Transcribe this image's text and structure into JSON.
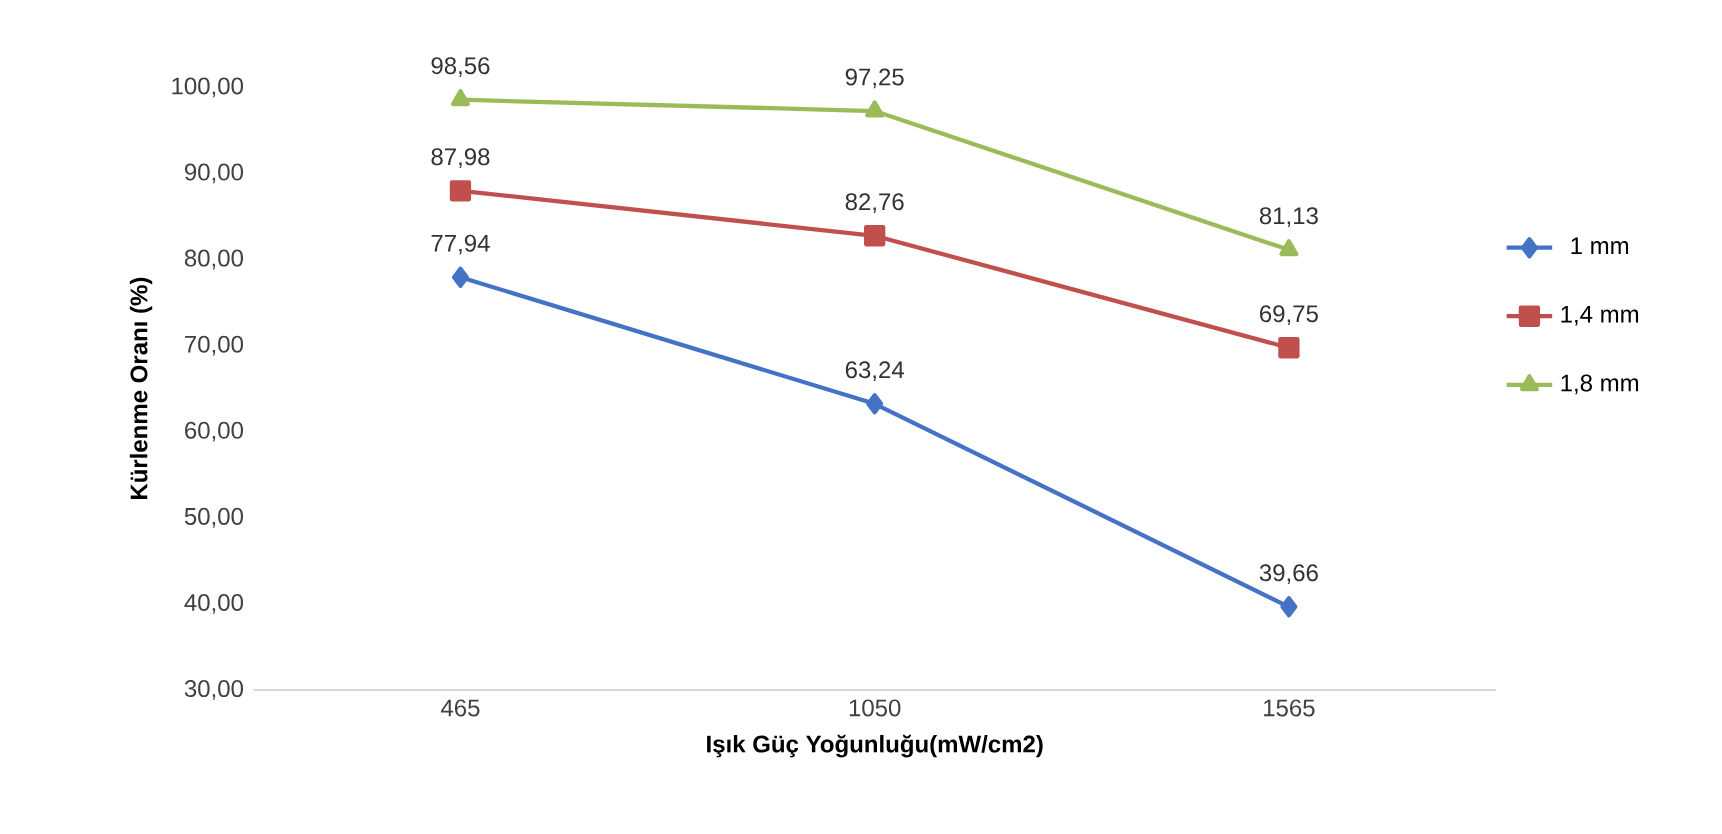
{
  "chart_data": {
    "type": "line",
    "xlabel": "Işık Güç Yoğunluğu(mW/cm2)",
    "ylabel": "Kürlenme Oranı (%)",
    "categories": [
      "465",
      "1050",
      "1565"
    ],
    "series": [
      {
        "name": "1 mm",
        "color": "#4472c4",
        "marker": "diamond",
        "values": [
          77.94,
          63.24,
          39.66
        ],
        "value_labels": [
          "77,94",
          "63,24",
          "39,66"
        ]
      },
      {
        "name": "1,4 mm",
        "color": "#c0504d",
        "marker": "square",
        "values": [
          87.98,
          82.76,
          69.75
        ],
        "value_labels": [
          "87,98",
          "82,76",
          "69,75"
        ]
      },
      {
        "name": "1,8 mm",
        "color": "#9bbb59",
        "marker": "triangle",
        "values": [
          98.56,
          97.25,
          81.13
        ],
        "value_labels": [
          "98,56",
          "97,25",
          "81,13"
        ]
      }
    ],
    "ylim": [
      30,
      100
    ],
    "yticks": [
      {
        "value": 30,
        "label": "30,00"
      },
      {
        "value": 40,
        "label": "40,00"
      },
      {
        "value": 50,
        "label": "50,00"
      },
      {
        "value": 60,
        "label": "60,00"
      },
      {
        "value": 70,
        "label": "70,00"
      },
      {
        "value": 80,
        "label": "80,00"
      },
      {
        "value": 90,
        "label": "90,00"
      },
      {
        "value": 100,
        "label": "100,00"
      }
    ],
    "grid": false,
    "legend": "right",
    "line_style": "solid"
  }
}
